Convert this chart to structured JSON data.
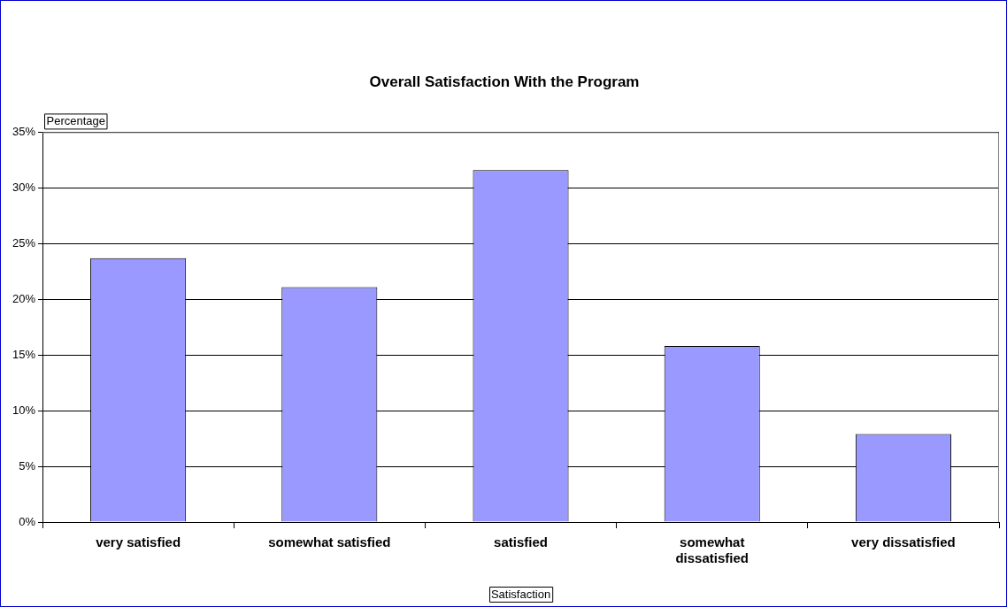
{
  "chart_data": {
    "type": "bar",
    "title": "Overall Satisfaction With the Program",
    "xlabel": "Satisfaction",
    "ylabel": "Percentage",
    "categories": [
      "very satisfied",
      "somewhat satisfied",
      "satisfied",
      "somewhat dissatisfied",
      "very dissatisfied"
    ],
    "values": [
      23.7,
      21.1,
      31.6,
      15.8,
      7.9
    ],
    "color": "#9999ff",
    "ylim": [
      0,
      35
    ],
    "yticks": [
      {
        "value": 0,
        "label": "0%"
      },
      {
        "value": 5,
        "label": "5%"
      },
      {
        "value": 10,
        "label": "10%"
      },
      {
        "value": 15,
        "label": "15%"
      },
      {
        "value": 20,
        "label": "20%"
      },
      {
        "value": 25,
        "label": "25%"
      },
      {
        "value": 30,
        "label": "30%"
      },
      {
        "value": 35,
        "label": "35%"
      }
    ],
    "grid": "y",
    "legend": false
  }
}
